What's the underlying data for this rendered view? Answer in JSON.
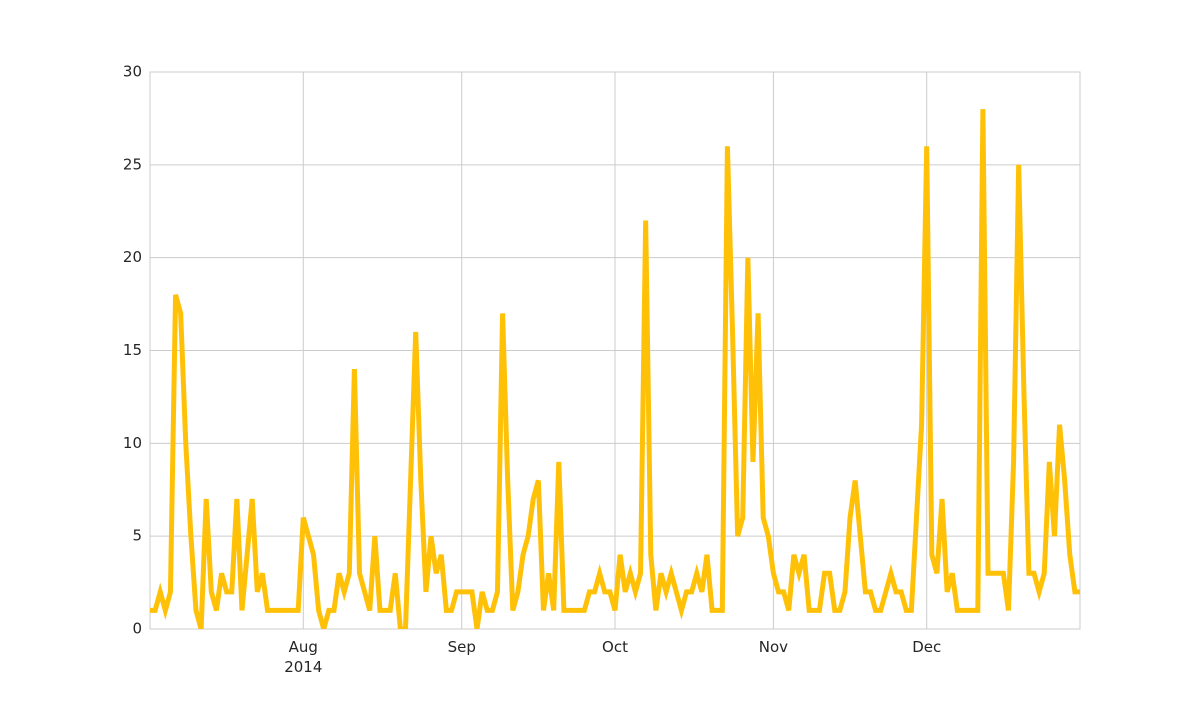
{
  "chart_data": {
    "type": "line",
    "x": [
      "2014-07-02",
      "2014-07-03",
      "2014-07-04",
      "2014-07-05",
      "2014-07-06",
      "2014-07-07",
      "2014-07-08",
      "2014-07-09",
      "2014-07-10",
      "2014-07-11",
      "2014-07-12",
      "2014-07-13",
      "2014-07-14",
      "2014-07-15",
      "2014-07-16",
      "2014-07-17",
      "2014-07-18",
      "2014-07-19",
      "2014-07-20",
      "2014-07-21",
      "2014-07-22",
      "2014-07-23",
      "2014-07-24",
      "2014-07-25",
      "2014-07-26",
      "2014-07-27",
      "2014-07-28",
      "2014-07-29",
      "2014-07-30",
      "2014-07-31",
      "2014-08-01",
      "2014-08-02",
      "2014-08-03",
      "2014-08-04",
      "2014-08-05",
      "2014-08-06",
      "2014-08-07",
      "2014-08-08",
      "2014-08-09",
      "2014-08-10",
      "2014-08-11",
      "2014-08-12",
      "2014-08-13",
      "2014-08-14",
      "2014-08-15",
      "2014-08-16",
      "2014-08-17",
      "2014-08-18",
      "2014-08-19",
      "2014-08-20",
      "2014-08-21",
      "2014-08-22",
      "2014-08-23",
      "2014-08-24",
      "2014-08-25",
      "2014-08-26",
      "2014-08-27",
      "2014-08-28",
      "2014-08-29",
      "2014-08-30",
      "2014-08-31",
      "2014-09-01",
      "2014-09-02",
      "2014-09-03",
      "2014-09-04",
      "2014-09-05",
      "2014-09-06",
      "2014-09-07",
      "2014-09-08",
      "2014-09-09",
      "2014-09-10",
      "2014-09-11",
      "2014-09-12",
      "2014-09-13",
      "2014-09-14",
      "2014-09-15",
      "2014-09-16",
      "2014-09-17",
      "2014-09-18",
      "2014-09-19",
      "2014-09-20",
      "2014-09-21",
      "2014-09-22",
      "2014-09-23",
      "2014-09-24",
      "2014-09-25",
      "2014-09-26",
      "2014-09-27",
      "2014-09-28",
      "2014-09-29",
      "2014-09-30",
      "2014-10-01",
      "2014-10-02",
      "2014-10-03",
      "2014-10-04",
      "2014-10-05",
      "2014-10-06",
      "2014-10-07",
      "2014-10-08",
      "2014-10-09",
      "2014-10-10",
      "2014-10-11",
      "2014-10-12",
      "2014-10-13",
      "2014-10-14",
      "2014-10-15",
      "2014-10-16",
      "2014-10-17",
      "2014-10-18",
      "2014-10-19",
      "2014-10-20",
      "2014-10-21",
      "2014-10-22",
      "2014-10-23",
      "2014-10-24",
      "2014-10-25",
      "2014-10-26",
      "2014-10-27",
      "2014-10-28",
      "2014-10-29",
      "2014-10-30",
      "2014-10-31",
      "2014-11-01",
      "2014-11-02",
      "2014-11-03",
      "2014-11-04",
      "2014-11-05",
      "2014-11-06",
      "2014-11-07",
      "2014-11-08",
      "2014-11-09",
      "2014-11-10",
      "2014-11-11",
      "2014-11-12",
      "2014-11-13",
      "2014-11-14",
      "2014-11-15",
      "2014-11-16",
      "2014-11-17",
      "2014-11-18",
      "2014-11-19",
      "2014-11-20",
      "2014-11-21",
      "2014-11-22",
      "2014-11-23",
      "2014-11-24",
      "2014-11-25",
      "2014-11-26",
      "2014-11-27",
      "2014-11-28",
      "2014-11-29",
      "2014-11-30",
      "2014-12-01",
      "2014-12-02",
      "2014-12-03",
      "2014-12-04",
      "2014-12-05",
      "2014-12-06",
      "2014-12-07",
      "2014-12-08",
      "2014-12-09",
      "2014-12-10",
      "2014-12-11",
      "2014-12-12",
      "2014-12-13",
      "2014-12-14",
      "2014-12-15",
      "2014-12-16",
      "2014-12-17",
      "2014-12-18",
      "2014-12-19",
      "2014-12-20",
      "2014-12-21",
      "2014-12-22",
      "2014-12-23",
      "2014-12-24",
      "2014-12-25",
      "2014-12-26",
      "2014-12-27",
      "2014-12-28",
      "2014-12-29",
      "2014-12-30",
      "2014-12-31"
    ],
    "values": [
      1,
      1,
      2,
      1,
      2,
      18,
      17,
      10,
      5,
      1,
      0,
      7,
      2,
      1,
      3,
      2,
      2,
      7,
      1,
      4,
      7,
      2,
      3,
      1,
      1,
      1,
      1,
      1,
      1,
      1,
      6,
      5,
      4,
      1,
      0,
      1,
      1,
      3,
      2,
      3,
      14,
      3,
      2,
      1,
      5,
      1,
      1,
      1,
      3,
      0,
      0,
      8,
      16,
      8,
      2,
      5,
      3,
      4,
      1,
      1,
      2,
      2,
      2,
      2,
      0,
      2,
      1,
      1,
      2,
      17,
      8,
      1,
      2,
      4,
      5,
      7,
      8,
      1,
      3,
      1,
      9,
      1,
      1,
      1,
      1,
      1,
      2,
      2,
      3,
      2,
      2,
      1,
      4,
      2,
      3,
      2,
      3,
      22,
      4,
      1,
      3,
      2,
      3,
      2,
      1,
      2,
      2,
      3,
      2,
      4,
      1,
      1,
      1,
      26,
      16,
      5,
      6,
      20,
      9,
      17,
      6,
      5,
      3,
      2,
      2,
      1,
      4,
      3,
      4,
      1,
      1,
      1,
      3,
      3,
      1,
      1,
      2,
      6,
      8,
      5,
      2,
      2,
      1,
      1,
      2,
      3,
      2,
      2,
      1,
      1,
      6,
      11,
      26,
      4,
      3,
      7,
      2,
      3,
      1,
      1,
      1,
      1,
      1,
      28,
      3,
      3,
      3,
      3,
      1,
      9,
      25,
      13,
      3,
      3,
      2,
      3,
      9,
      5,
      11,
      8,
      4,
      2,
      2
    ],
    "color": "#ffc107",
    "xlim": [
      "2014-07-02",
      "2014-12-31"
    ],
    "xticks": [
      {
        "value": "2014-08-01",
        "label": "Aug\n2014"
      },
      {
        "value": "2014-09-01",
        "label": "Sep"
      },
      {
        "value": "2014-10-01",
        "label": "Oct"
      },
      {
        "value": "2014-11-01",
        "label": "Nov"
      },
      {
        "value": "2014-12-01",
        "label": "Dec"
      }
    ],
    "ylim": [
      0,
      30
    ],
    "yticks": [
      0,
      5,
      10,
      15,
      20,
      25,
      30
    ],
    "grid": true
  }
}
